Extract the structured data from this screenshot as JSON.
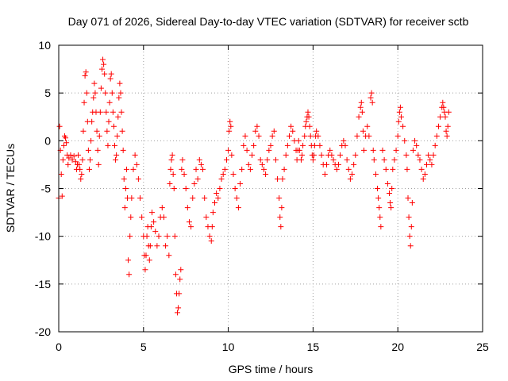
{
  "chart_data": {
    "type": "scatter",
    "title": "Day 071 of 2026, Sidereal Day-to-day VTEC variation (SDTVAR) for receiver sctb",
    "xlabel": "GPS time / hours",
    "ylabel": "SDTVAR / TECUs",
    "xlim": [
      0,
      25
    ],
    "ylim": [
      -20,
      10
    ],
    "xticks": [
      "0",
      "5",
      "10",
      "15",
      "20",
      "25"
    ],
    "yticks": [
      "10",
      "5",
      "0",
      "-5",
      "-10",
      "-15",
      "-20"
    ],
    "grid": true,
    "marker": "plus",
    "series": [
      {
        "name": "SDTVAR",
        "color": "#ff0000",
        "points": [
          [
            0.0,
            -6.0
          ],
          [
            0.05,
            1.5
          ],
          [
            0.1,
            -1.0
          ],
          [
            0.15,
            -3.5
          ],
          [
            0.2,
            -5.8
          ],
          [
            0.25,
            -2.0
          ],
          [
            0.3,
            -0.5
          ],
          [
            0.35,
            0.5
          ],
          [
            0.4,
            0.3
          ],
          [
            0.45,
            -0.2
          ],
          [
            0.5,
            -1.5
          ],
          [
            0.55,
            -2.5
          ],
          [
            0.6,
            -1.8
          ],
          [
            0.7,
            -1.5
          ],
          [
            0.8,
            -2.0
          ],
          [
            0.9,
            -1.6
          ],
          [
            1.0,
            -2.2
          ],
          [
            1.05,
            -3.0
          ],
          [
            1.1,
            -2.5
          ],
          [
            1.15,
            -1.5
          ],
          [
            1.2,
            -2.5
          ],
          [
            1.25,
            -3.0
          ],
          [
            1.3,
            -4.0
          ],
          [
            1.35,
            -3.5
          ],
          [
            1.4,
            -2.0
          ],
          [
            1.45,
            1.0
          ],
          [
            1.5,
            4.0
          ],
          [
            1.55,
            6.8
          ],
          [
            1.6,
            7.2
          ],
          [
            1.65,
            5.0
          ],
          [
            1.7,
            2.0
          ],
          [
            1.75,
            -1.0
          ],
          [
            1.8,
            -3.0
          ],
          [
            1.85,
            -2.0
          ],
          [
            1.9,
            0.0
          ],
          [
            1.95,
            2.0
          ],
          [
            2.0,
            3.0
          ],
          [
            2.05,
            4.5
          ],
          [
            2.1,
            6.0
          ],
          [
            2.15,
            5.0
          ],
          [
            2.2,
            3.0
          ],
          [
            2.25,
            1.0
          ],
          [
            2.3,
            -1.0
          ],
          [
            2.35,
            -2.5
          ],
          [
            2.4,
            0.5
          ],
          [
            2.45,
            3.0
          ],
          [
            2.5,
            5.5
          ],
          [
            2.55,
            7.5
          ],
          [
            2.6,
            8.5
          ],
          [
            2.65,
            8.0
          ],
          [
            2.7,
            7.0
          ],
          [
            2.75,
            5.0
          ],
          [
            2.8,
            3.0
          ],
          [
            2.85,
            1.0
          ],
          [
            2.9,
            -0.5
          ],
          [
            2.95,
            2.0
          ],
          [
            3.0,
            4.0
          ],
          [
            3.05,
            6.5
          ],
          [
            3.1,
            7.0
          ],
          [
            3.15,
            5.0
          ],
          [
            3.2,
            3.0
          ],
          [
            3.25,
            1.5
          ],
          [
            3.3,
            -0.5
          ],
          [
            3.35,
            -2.0
          ],
          [
            3.4,
            -1.5
          ],
          [
            3.45,
            0.5
          ],
          [
            3.5,
            2.5
          ],
          [
            3.55,
            4.5
          ],
          [
            3.6,
            6.0
          ],
          [
            3.65,
            5.0
          ],
          [
            3.7,
            3.0
          ],
          [
            3.75,
            1.0
          ],
          [
            3.8,
            -1.0
          ],
          [
            3.85,
            -4.0
          ],
          [
            3.9,
            -7.0
          ],
          [
            3.95,
            -5.0
          ],
          [
            4.0,
            -3.0
          ],
          [
            4.05,
            -6.0
          ],
          [
            4.1,
            -12.5
          ],
          [
            4.15,
            -14.0
          ],
          [
            4.2,
            -10.0
          ],
          [
            4.25,
            -8.0
          ],
          [
            4.3,
            -6.0
          ],
          [
            4.4,
            -3.0
          ],
          [
            4.5,
            -1.5
          ],
          [
            4.6,
            -2.5
          ],
          [
            4.7,
            -4.0
          ],
          [
            4.8,
            -6.0
          ],
          [
            4.9,
            -8.0
          ],
          [
            5.0,
            -10.0
          ],
          [
            5.05,
            -12.0
          ],
          [
            5.1,
            -13.5
          ],
          [
            5.15,
            -12.0
          ],
          [
            5.2,
            -10.0
          ],
          [
            5.25,
            -9.0
          ],
          [
            5.3,
            -11.0
          ],
          [
            5.35,
            -12.5
          ],
          [
            5.4,
            -11.0
          ],
          [
            5.45,
            -9.0
          ],
          [
            5.5,
            -7.5
          ],
          [
            5.6,
            -8.5
          ],
          [
            5.7,
            -9.5
          ],
          [
            5.8,
            -11.0
          ],
          [
            5.9,
            -10.0
          ],
          [
            6.0,
            -8.0
          ],
          [
            6.1,
            -7.0
          ],
          [
            6.2,
            -8.0
          ],
          [
            6.3,
            -11.0
          ],
          [
            6.4,
            -10.0
          ],
          [
            6.5,
            -12.0
          ],
          [
            6.55,
            -4.5
          ],
          [
            6.6,
            -3.0
          ],
          [
            6.65,
            -2.0
          ],
          [
            6.7,
            -1.5
          ],
          [
            6.75,
            -3.5
          ],
          [
            6.8,
            -5.0
          ],
          [
            6.85,
            -10.0
          ],
          [
            6.9,
            -14.0
          ],
          [
            6.95,
            -16.0
          ],
          [
            7.0,
            -18.0
          ],
          [
            7.05,
            -17.5
          ],
          [
            7.1,
            -16.0
          ],
          [
            7.15,
            -14.5
          ],
          [
            7.2,
            -13.5
          ],
          [
            7.25,
            -3.0
          ],
          [
            7.3,
            -2.0
          ],
          [
            7.4,
            -3.5
          ],
          [
            7.5,
            -5.0
          ],
          [
            7.6,
            -7.0
          ],
          [
            7.7,
            -8.5
          ],
          [
            7.8,
            -9.0
          ],
          [
            7.9,
            -6.0
          ],
          [
            8.0,
            -4.5
          ],
          [
            8.1,
            -3.0
          ],
          [
            8.2,
            -4.0
          ],
          [
            8.3,
            -2.0
          ],
          [
            8.4,
            -2.5
          ],
          [
            8.5,
            -3.0
          ],
          [
            8.6,
            -6.0
          ],
          [
            8.7,
            -8.0
          ],
          [
            8.8,
            -9.0
          ],
          [
            8.9,
            -10.0
          ],
          [
            9.0,
            -10.5
          ],
          [
            9.05,
            -9.0
          ],
          [
            9.1,
            -7.5
          ],
          [
            9.2,
            -6.5
          ],
          [
            9.3,
            -5.5
          ],
          [
            9.4,
            -6.0
          ],
          [
            9.5,
            -5.0
          ],
          [
            9.6,
            -4.0
          ],
          [
            9.7,
            -3.5
          ],
          [
            9.8,
            -3.0
          ],
          [
            9.9,
            -2.0
          ],
          [
            10.0,
            -1.0
          ],
          [
            10.05,
            1.0
          ],
          [
            10.1,
            2.0
          ],
          [
            10.15,
            1.5
          ],
          [
            10.2,
            -1.5
          ],
          [
            10.3,
            -3.5
          ],
          [
            10.4,
            -5.0
          ],
          [
            10.5,
            -6.0
          ],
          [
            10.6,
            -7.0
          ],
          [
            10.7,
            -4.5
          ],
          [
            10.8,
            -3.0
          ],
          [
            10.9,
            -0.5
          ],
          [
            11.0,
            0.5
          ],
          [
            11.1,
            -1.0
          ],
          [
            11.2,
            -2.5
          ],
          [
            11.3,
            -3.0
          ],
          [
            11.4,
            -1.5
          ],
          [
            11.5,
            -0.5
          ],
          [
            11.6,
            1.0
          ],
          [
            11.7,
            1.5
          ],
          [
            11.8,
            0.5
          ],
          [
            11.9,
            -2.0
          ],
          [
            12.0,
            -2.5
          ],
          [
            12.1,
            -3.0
          ],
          [
            12.2,
            -3.5
          ],
          [
            12.3,
            -2.0
          ],
          [
            12.4,
            -1.0
          ],
          [
            12.5,
            -0.5
          ],
          [
            12.6,
            0.5
          ],
          [
            12.7,
            1.0
          ],
          [
            12.8,
            -2.0
          ],
          [
            12.9,
            -4.0
          ],
          [
            13.0,
            -6.0
          ],
          [
            13.05,
            -8.0
          ],
          [
            13.1,
            -9.0
          ],
          [
            13.15,
            -7.0
          ],
          [
            13.2,
            -4.0
          ],
          [
            13.3,
            -3.0
          ],
          [
            13.4,
            -1.5
          ],
          [
            13.5,
            -0.5
          ],
          [
            13.6,
            0.5
          ],
          [
            13.7,
            1.5
          ],
          [
            13.8,
            1.0
          ],
          [
            13.9,
            0.0
          ],
          [
            14.0,
            -1.0
          ],
          [
            14.05,
            -2.0
          ],
          [
            14.1,
            -1.0
          ],
          [
            14.15,
            0.0
          ],
          [
            14.2,
            -1.0
          ],
          [
            14.3,
            -2.0
          ],
          [
            14.35,
            -1.5
          ],
          [
            14.4,
            -0.5
          ],
          [
            14.5,
            0.5
          ],
          [
            14.55,
            1.5
          ],
          [
            14.6,
            2.0
          ],
          [
            14.65,
            2.5
          ],
          [
            14.7,
            3.0
          ],
          [
            14.75,
            2.5
          ],
          [
            14.8,
            1.5
          ],
          [
            14.85,
            0.5
          ],
          [
            14.9,
            -0.5
          ],
          [
            14.95,
            -1.5
          ],
          [
            15.0,
            -2.0
          ],
          [
            15.05,
            -1.5
          ],
          [
            15.1,
            -0.5
          ],
          [
            15.15,
            0.5
          ],
          [
            15.2,
            1.0
          ],
          [
            15.3,
            0.5
          ],
          [
            15.4,
            -0.5
          ],
          [
            15.5,
            -1.5
          ],
          [
            15.6,
            -2.5
          ],
          [
            15.7,
            -3.5
          ],
          [
            15.8,
            -2.5
          ],
          [
            15.9,
            -1.5
          ],
          [
            16.0,
            -1.0
          ],
          [
            16.1,
            -1.5
          ],
          [
            16.2,
            -2.0
          ],
          [
            16.3,
            -2.5
          ],
          [
            16.4,
            -3.0
          ],
          [
            16.5,
            -2.5
          ],
          [
            16.6,
            -1.5
          ],
          [
            16.7,
            -0.5
          ],
          [
            16.8,
            0.0
          ],
          [
            16.9,
            -0.5
          ],
          [
            17.0,
            -2.0
          ],
          [
            17.1,
            -3.0
          ],
          [
            17.2,
            -4.0
          ],
          [
            17.3,
            -3.5
          ],
          [
            17.4,
            -2.5
          ],
          [
            17.5,
            -1.5
          ],
          [
            17.6,
            0.5
          ],
          [
            17.7,
            2.5
          ],
          [
            17.8,
            3.5
          ],
          [
            17.85,
            4.0
          ],
          [
            17.9,
            3.0
          ],
          [
            17.95,
            1.0
          ],
          [
            18.0,
            -1.0
          ],
          [
            18.1,
            0.5
          ],
          [
            18.2,
            1.5
          ],
          [
            18.3,
            0.5
          ],
          [
            18.4,
            4.5
          ],
          [
            18.45,
            5.0
          ],
          [
            18.5,
            4.0
          ],
          [
            18.55,
            -1.0
          ],
          [
            18.6,
            -2.0
          ],
          [
            18.7,
            -3.5
          ],
          [
            18.8,
            -5.0
          ],
          [
            18.85,
            -6.0
          ],
          [
            18.9,
            -7.0
          ],
          [
            18.95,
            -8.0
          ],
          [
            19.0,
            -9.0
          ],
          [
            19.1,
            -1.0
          ],
          [
            19.2,
            -2.0
          ],
          [
            19.3,
            -3.0
          ],
          [
            19.4,
            -4.5
          ],
          [
            19.5,
            -5.5
          ],
          [
            19.55,
            -6.5
          ],
          [
            19.6,
            -7.0
          ],
          [
            19.65,
            -5.0
          ],
          [
            19.7,
            -3.0
          ],
          [
            19.8,
            -2.0
          ],
          [
            19.9,
            -1.0
          ],
          [
            20.0,
            0.5
          ],
          [
            20.05,
            2.0
          ],
          [
            20.1,
            3.0
          ],
          [
            20.15,
            3.5
          ],
          [
            20.2,
            2.5
          ],
          [
            20.3,
            1.5
          ],
          [
            20.4,
            0.0
          ],
          [
            20.5,
            -1.5
          ],
          [
            20.55,
            -3.0
          ],
          [
            20.6,
            -6.0
          ],
          [
            20.65,
            -8.0
          ],
          [
            20.7,
            -10.0
          ],
          [
            20.75,
            -11.0
          ],
          [
            20.8,
            -9.0
          ],
          [
            20.85,
            -6.5
          ],
          [
            20.9,
            -1.0
          ],
          [
            21.0,
            0.0
          ],
          [
            21.1,
            -0.5
          ],
          [
            21.2,
            -1.5
          ],
          [
            21.3,
            -2.0
          ],
          [
            21.4,
            -3.0
          ],
          [
            21.5,
            -4.0
          ],
          [
            21.6,
            -3.5
          ],
          [
            21.7,
            -2.5
          ],
          [
            21.8,
            -1.5
          ],
          [
            21.9,
            -2.0
          ],
          [
            22.0,
            -2.5
          ],
          [
            22.1,
            -1.5
          ],
          [
            22.2,
            -0.5
          ],
          [
            22.3,
            0.5
          ],
          [
            22.4,
            1.5
          ],
          [
            22.5,
            2.5
          ],
          [
            22.6,
            3.5
          ],
          [
            22.65,
            4.0
          ],
          [
            22.7,
            3.5
          ],
          [
            22.75,
            3.0
          ],
          [
            22.8,
            2.5
          ],
          [
            22.85,
            1.0
          ],
          [
            22.9,
            0.5
          ],
          [
            22.95,
            1.5
          ],
          [
            23.0,
            3.0
          ]
        ]
      }
    ]
  }
}
